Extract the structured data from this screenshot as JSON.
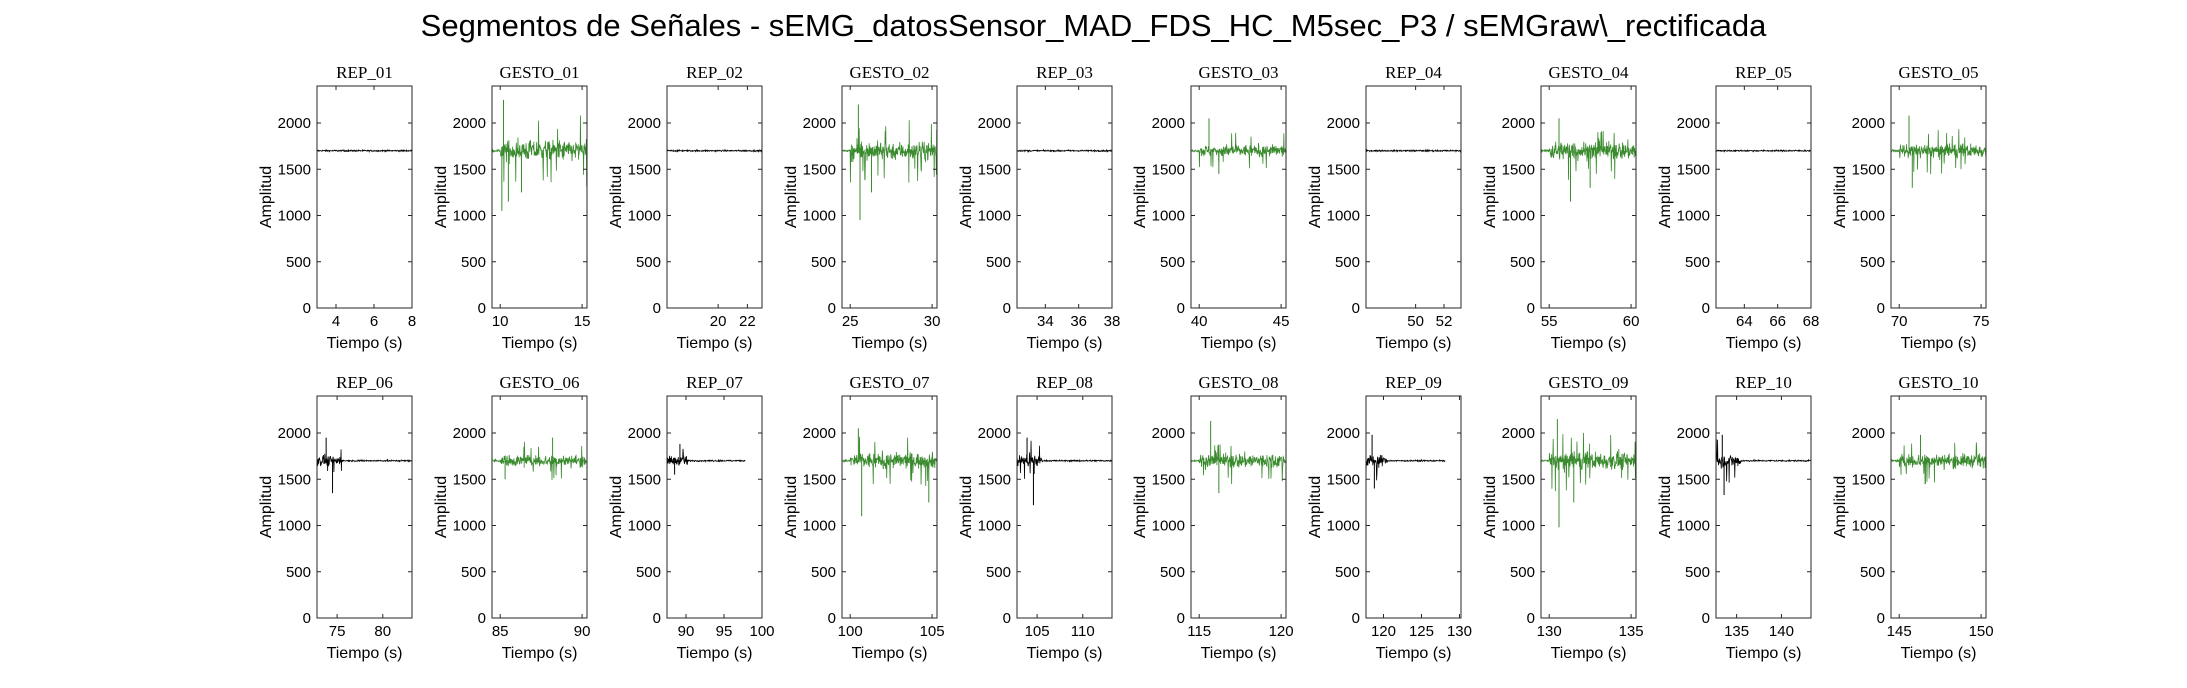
{
  "figure_title": "Segmentos de Señales - sEMG_datosSensor_MAD_FDS_HC_M5sec_P3 / sEMGraw\\_rectificada",
  "colors": {
    "rep": "#000000",
    "gesto": "#3a8a2e",
    "axis": "#262626"
  },
  "chart_data": [
    {
      "type": "line",
      "title": "REP_01",
      "kind": "rep",
      "xlim": [
        3,
        8
      ],
      "xticks": [
        4,
        6,
        8
      ],
      "ylim": [
        0,
        2400
      ],
      "yticks": [
        0,
        500,
        1000,
        1500,
        2000
      ],
      "xlabel": "Tiempo (s)",
      "ylabel": "Amplitud",
      "data_x": [
        3,
        8
      ],
      "baseline": 1700,
      "noise": [
        [
          3,
          8,
          18
        ]
      ]
    },
    {
      "type": "line",
      "title": "GESTO_01",
      "kind": "gesto",
      "xlim": [
        9.5,
        15.3
      ],
      "xticks": [
        10,
        15
      ],
      "ylim": [
        0,
        2400
      ],
      "yticks": [
        0,
        500,
        1000,
        1500,
        2000
      ],
      "xlabel": "Tiempo (s)",
      "ylabel": "Amplitud",
      "data_x": [
        9.5,
        15.3
      ],
      "baseline": 1700,
      "noise": [
        [
          9.5,
          10,
          25
        ],
        [
          10,
          15.3,
          260
        ]
      ],
      "spikes": [
        [
          10.1,
          1050
        ],
        [
          10.5,
          1150
        ],
        [
          11.3,
          1250
        ],
        [
          10.2,
          2250
        ]
      ]
    },
    {
      "type": "line",
      "title": "REP_02",
      "kind": "rep",
      "xlim": [
        16.5,
        23
      ],
      "xticks": [
        20,
        22
      ],
      "ylim": [
        0,
        2400
      ],
      "yticks": [
        0,
        500,
        1000,
        1500,
        2000
      ],
      "xlabel": "Tiempo (s)",
      "ylabel": "Amplitud",
      "data_x": [
        16.5,
        23
      ],
      "baseline": 1700,
      "noise": [
        [
          16.5,
          23,
          18
        ]
      ]
    },
    {
      "type": "line",
      "title": "GESTO_02",
      "kind": "gesto",
      "xlim": [
        24.5,
        30.3
      ],
      "xticks": [
        25,
        30
      ],
      "ylim": [
        0,
        2400
      ],
      "yticks": [
        0,
        500,
        1000,
        1500,
        2000
      ],
      "xlabel": "Tiempo (s)",
      "ylabel": "Amplitud",
      "data_x": [
        24.5,
        30.3
      ],
      "baseline": 1700,
      "noise": [
        [
          24.5,
          25,
          25
        ],
        [
          25,
          30.3,
          230
        ]
      ],
      "spikes": [
        [
          25.6,
          950
        ],
        [
          25.5,
          2200
        ],
        [
          26.3,
          1250
        ]
      ]
    },
    {
      "type": "line",
      "title": "REP_03",
      "kind": "rep",
      "xlim": [
        32.3,
        38
      ],
      "xticks": [
        34,
        36,
        38
      ],
      "ylim": [
        0,
        2400
      ],
      "yticks": [
        0,
        500,
        1000,
        1500,
        2000
      ],
      "xlabel": "Tiempo (s)",
      "ylabel": "Amplitud",
      "data_x": [
        32.3,
        38
      ],
      "baseline": 1700,
      "noise": [
        [
          32.3,
          38,
          18
        ]
      ]
    },
    {
      "type": "line",
      "title": "GESTO_03",
      "kind": "gesto",
      "xlim": [
        39.5,
        45.3
      ],
      "xticks": [
        40,
        45
      ],
      "ylim": [
        0,
        2400
      ],
      "yticks": [
        0,
        500,
        1000,
        1500,
        2000
      ],
      "xlabel": "Tiempo (s)",
      "ylabel": "Amplitud",
      "data_x": [
        39.5,
        45.3
      ],
      "baseline": 1700,
      "noise": [
        [
          39.5,
          40,
          25
        ],
        [
          40,
          45.3,
          150
        ]
      ],
      "spikes": [
        [
          40.6,
          2050
        ],
        [
          41.2,
          1450
        ]
      ]
    },
    {
      "type": "line",
      "title": "REP_04",
      "kind": "rep",
      "xlim": [
        46.5,
        53.2
      ],
      "xticks": [
        50,
        52
      ],
      "ylim": [
        0,
        2400
      ],
      "yticks": [
        0,
        500,
        1000,
        1500,
        2000
      ],
      "xlabel": "Tiempo (s)",
      "ylabel": "Amplitud",
      "data_x": [
        46.5,
        53.2
      ],
      "baseline": 1700,
      "noise": [
        [
          46.5,
          53.2,
          18
        ]
      ]
    },
    {
      "type": "line",
      "title": "GESTO_04",
      "kind": "gesto",
      "xlim": [
        54.5,
        60.3
      ],
      "xticks": [
        55,
        60
      ],
      "ylim": [
        0,
        2400
      ],
      "yticks": [
        0,
        500,
        1000,
        1500,
        2000
      ],
      "xlabel": "Tiempo (s)",
      "ylabel": "Amplitud",
      "data_x": [
        54.5,
        60.3
      ],
      "baseline": 1700,
      "noise": [
        [
          54.5,
          55,
          25
        ],
        [
          55,
          60.3,
          230
        ]
      ],
      "spikes": [
        [
          56.3,
          1150
        ],
        [
          55.6,
          2050
        ],
        [
          57.5,
          1300
        ]
      ]
    },
    {
      "type": "line",
      "title": "REP_05",
      "kind": "rep",
      "xlim": [
        62.3,
        68
      ],
      "xticks": [
        64,
        66,
        68
      ],
      "ylim": [
        0,
        2400
      ],
      "yticks": [
        0,
        500,
        1000,
        1500,
        2000
      ],
      "xlabel": "Tiempo (s)",
      "ylabel": "Amplitud",
      "data_x": [
        62.3,
        68
      ],
      "baseline": 1700,
      "noise": [
        [
          62.3,
          68,
          18
        ]
      ]
    },
    {
      "type": "line",
      "title": "GESTO_05",
      "kind": "gesto",
      "xlim": [
        69.5,
        75.3
      ],
      "xticks": [
        70,
        75
      ],
      "ylim": [
        0,
        2400
      ],
      "yticks": [
        0,
        500,
        1000,
        1500,
        2000
      ],
      "xlabel": "Tiempo (s)",
      "ylabel": "Amplitud",
      "data_x": [
        69.5,
        75.3
      ],
      "baseline": 1700,
      "noise": [
        [
          69.5,
          70,
          25
        ],
        [
          70,
          75.3,
          170
        ]
      ],
      "spikes": [
        [
          70.6,
          2080
        ],
        [
          70.8,
          1300
        ]
      ]
    },
    {
      "type": "line",
      "title": "REP_06",
      "kind": "rep",
      "xlim": [
        72.8,
        83.2
      ],
      "xticks": [
        75,
        80
      ],
      "ylim": [
        0,
        2400
      ],
      "yticks": [
        0,
        500,
        1000,
        1500,
        2000
      ],
      "xlabel": "Tiempo (s)",
      "ylabel": "Amplitud",
      "data_x": [
        72.8,
        83.2
      ],
      "baseline": 1700,
      "noise": [
        [
          72.8,
          75.5,
          130
        ],
        [
          75.5,
          83.2,
          18
        ]
      ],
      "spikes": [
        [
          74.5,
          1350
        ],
        [
          73.8,
          1950
        ]
      ]
    },
    {
      "type": "line",
      "title": "GESTO_06",
      "kind": "gesto",
      "xlim": [
        84.5,
        90.3
      ],
      "xticks": [
        85,
        90
      ],
      "ylim": [
        0,
        2400
      ],
      "yticks": [
        0,
        500,
        1000,
        1500,
        2000
      ],
      "xlabel": "Tiempo (s)",
      "ylabel": "Amplitud",
      "data_x": [
        84.5,
        90.3
      ],
      "baseline": 1700,
      "noise": [
        [
          84.5,
          85,
          25
        ],
        [
          85,
          90.3,
          140
        ]
      ],
      "spikes": [
        [
          85.3,
          1500
        ],
        [
          88.2,
          1950
        ]
      ]
    },
    {
      "type": "line",
      "title": "REP_07",
      "kind": "rep",
      "xlim": [
        87.5,
        100
      ],
      "xticks": [
        90,
        95,
        100
      ],
      "ylim": [
        0,
        2400
      ],
      "yticks": [
        0,
        500,
        1000,
        1500,
        2000
      ],
      "xlabel": "Tiempo (s)",
      "ylabel": "Amplitud",
      "data_x": [
        87.5,
        97.8
      ],
      "baseline": 1700,
      "noise": [
        [
          87.5,
          90.2,
          110
        ],
        [
          90.2,
          97.8,
          18
        ]
      ],
      "spikes": [
        [
          88.5,
          1550
        ],
        [
          89.2,
          1880
        ]
      ]
    },
    {
      "type": "line",
      "title": "GESTO_07",
      "kind": "gesto",
      "xlim": [
        99.5,
        105.3
      ],
      "xticks": [
        100,
        105
      ],
      "ylim": [
        0,
        2400
      ],
      "yticks": [
        0,
        500,
        1000,
        1500,
        2000
      ],
      "xlabel": "Tiempo (s)",
      "ylabel": "Amplitud",
      "data_x": [
        99.5,
        105.3
      ],
      "baseline": 1700,
      "noise": [
        [
          99.5,
          100,
          25
        ],
        [
          100,
          105.3,
          200
        ]
      ],
      "spikes": [
        [
          100.7,
          1100
        ],
        [
          100.5,
          2050
        ],
        [
          104.8,
          1250
        ]
      ]
    },
    {
      "type": "line",
      "title": "REP_08",
      "kind": "rep",
      "xlim": [
        102.8,
        113.2
      ],
      "xticks": [
        105,
        110
      ],
      "ylim": [
        0,
        2400
      ],
      "yticks": [
        0,
        500,
        1000,
        1500,
        2000
      ],
      "xlabel": "Tiempo (s)",
      "ylabel": "Amplitud",
      "data_x": [
        102.8,
        113.2
      ],
      "baseline": 1700,
      "noise": [
        [
          102.8,
          105.5,
          150
        ],
        [
          105.5,
          113.2,
          18
        ]
      ],
      "spikes": [
        [
          104.6,
          1220
        ],
        [
          103.9,
          1950
        ]
      ]
    },
    {
      "type": "line",
      "title": "GESTO_08",
      "kind": "gesto",
      "xlim": [
        114.5,
        120.3
      ],
      "xticks": [
        115,
        120
      ],
      "ylim": [
        0,
        2400
      ],
      "yticks": [
        0,
        500,
        1000,
        1500,
        2000
      ],
      "xlabel": "Tiempo (s)",
      "ylabel": "Amplitud",
      "data_x": [
        114.5,
        120.3
      ],
      "baseline": 1700,
      "noise": [
        [
          114.5,
          115,
          25
        ],
        [
          115,
          120.3,
          190
        ]
      ],
      "spikes": [
        [
          115.7,
          2130
        ],
        [
          116.2,
          1350
        ]
      ]
    },
    {
      "type": "line",
      "title": "REP_09",
      "kind": "rep",
      "xlim": [
        117.7,
        130.2
      ],
      "xticks": [
        120,
        125,
        130
      ],
      "ylim": [
        0,
        2400
      ],
      "yticks": [
        0,
        500,
        1000,
        1500,
        2000
      ],
      "xlabel": "Tiempo (s)",
      "ylabel": "Amplitud",
      "data_x": [
        117.7,
        128.1
      ],
      "baseline": 1700,
      "noise": [
        [
          117.7,
          120.5,
          150
        ],
        [
          120.5,
          128.1,
          18
        ]
      ],
      "spikes": [
        [
          118.8,
          1400
        ],
        [
          118.5,
          1980
        ]
      ]
    },
    {
      "type": "line",
      "title": "GESTO_09",
      "kind": "gesto",
      "xlim": [
        129.5,
        135.3
      ],
      "xticks": [
        130,
        135
      ],
      "ylim": [
        0,
        2400
      ],
      "yticks": [
        0,
        500,
        1000,
        1500,
        2000
      ],
      "xlabel": "Tiempo (s)",
      "ylabel": "Amplitud",
      "data_x": [
        129.5,
        135.3
      ],
      "baseline": 1700,
      "noise": [
        [
          129.5,
          130,
          25
        ],
        [
          130,
          135.3,
          220
        ]
      ],
      "spikes": [
        [
          130.6,
          980
        ],
        [
          130.5,
          2150
        ],
        [
          131.5,
          1250
        ]
      ]
    },
    {
      "type": "line",
      "title": "REP_10",
      "kind": "rep",
      "xlim": [
        132.7,
        143.3
      ],
      "xticks": [
        135,
        140
      ],
      "ylim": [
        0,
        2400
      ],
      "yticks": [
        0,
        500,
        1000,
        1500,
        2000
      ],
      "xlabel": "Tiempo (s)",
      "ylabel": "Amplitud",
      "data_x": [
        132.7,
        143.3
      ],
      "baseline": 1700,
      "noise": [
        [
          132.7,
          135.5,
          160
        ],
        [
          135.5,
          143.3,
          18
        ]
      ],
      "spikes": [
        [
          133.6,
          1330
        ],
        [
          133.4,
          1980
        ]
      ]
    },
    {
      "type": "line",
      "title": "GESTO_10",
      "kind": "gesto",
      "xlim": [
        144.5,
        150.3
      ],
      "xticks": [
        145,
        150
      ],
      "ylim": [
        0,
        2400
      ],
      "yticks": [
        0,
        500,
        1000,
        1500,
        2000
      ],
      "xlabel": "Tiempo (s)",
      "ylabel": "Amplitud",
      "data_x": [
        144.5,
        150.3
      ],
      "baseline": 1700,
      "noise": [
        [
          144.5,
          145,
          25
        ],
        [
          145,
          150.3,
          170
        ]
      ],
      "spikes": [
        [
          146.3,
          1980
        ],
        [
          146.6,
          1450
        ]
      ]
    }
  ]
}
